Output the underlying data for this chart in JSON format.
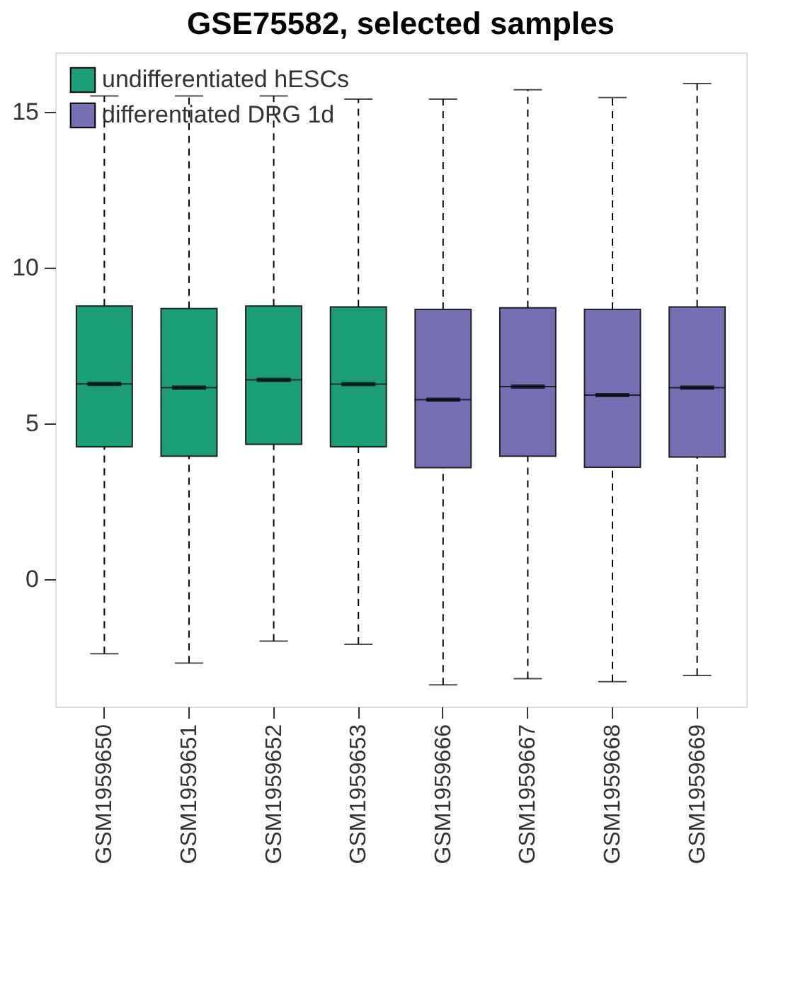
{
  "chart_data": {
    "type": "box",
    "title": "GSE75582, selected samples",
    "categories": [
      "GSM1959650",
      "GSM1959651",
      "GSM1959652",
      "GSM1959653",
      "GSM1959666",
      "GSM1959667",
      "GSM1959668",
      "GSM1959669"
    ],
    "series": [
      {
        "name": "undifferentiated hESCs",
        "color": "#1b9e77",
        "boxes": [
          {
            "low": -2.4,
            "q1": 4.24,
            "median": 6.26,
            "q3": 8.76,
            "high": 15.5
          },
          {
            "low": -2.7,
            "q1": 3.94,
            "median": 6.14,
            "q3": 8.68,
            "high": 15.5
          },
          {
            "low": -2.0,
            "q1": 4.32,
            "median": 6.39,
            "q3": 8.76,
            "high": 15.5
          },
          {
            "low": -2.1,
            "q1": 4.24,
            "median": 6.25,
            "q3": 8.73,
            "high": 15.4
          },
          null,
          null,
          null,
          null
        ]
      },
      {
        "name": "differentiated DRG 1d",
        "color": "#7570b3",
        "boxes": [
          null,
          null,
          null,
          null,
          {
            "low": -3.4,
            "q1": 3.57,
            "median": 5.75,
            "q3": 8.65,
            "high": 15.4
          },
          {
            "low": -3.2,
            "q1": 3.94,
            "median": 6.17,
            "q3": 8.7,
            "high": 15.7
          },
          {
            "low": -3.3,
            "q1": 3.58,
            "median": 5.9,
            "q3": 8.65,
            "high": 15.45
          },
          {
            "low": -3.1,
            "q1": 3.91,
            "median": 6.14,
            "q3": 8.73,
            "high": 15.9
          }
        ]
      }
    ],
    "ylim": [
      -4.1,
      16.9
    ],
    "yticks": [
      0,
      5,
      10,
      15
    ],
    "grid": false,
    "legend": "top left"
  }
}
